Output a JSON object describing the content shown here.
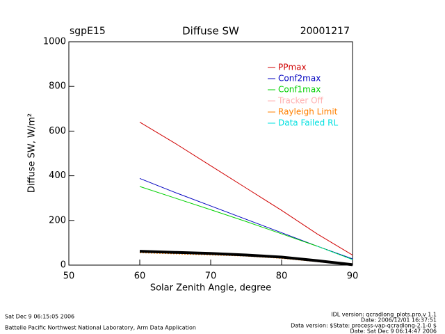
{
  "chart_data": {
    "type": "line",
    "site": "sgpE15",
    "title": "Diffuse SW",
    "date": "20001217",
    "x_label": "Solar Zenith Angle, degree",
    "y_label": "Diffuse SW, W/m²",
    "x": [
      60,
      65,
      70,
      75,
      80,
      85,
      90
    ],
    "xlim": [
      50,
      90
    ],
    "xticks": [
      50,
      60,
      70,
      80,
      90
    ],
    "ylim": [
      0,
      1000
    ],
    "yticks": [
      0,
      200,
      400,
      600,
      800,
      1000
    ],
    "series": [
      {
        "name": "PPmax",
        "color": "#d00000",
        "values": [
          640,
          545,
          445,
          345,
          245,
          140,
          45
        ]
      },
      {
        "name": "Conf2max",
        "color": "#0000c0",
        "values": [
          388,
          325,
          265,
          205,
          145,
          85,
          28
        ]
      },
      {
        "name": "Conf1max",
        "color": "#00d000",
        "values": [
          352,
          300,
          248,
          195,
          140,
          85,
          25
        ]
      },
      {
        "name": "Tracker Off",
        "color": "#ffb0b0",
        "values": [
          null,
          null,
          null,
          null,
          null,
          null,
          null
        ]
      },
      {
        "name": "Rayleigh Limit",
        "color": "#ff8000",
        "values": [
          55,
          50,
          45,
          40,
          30,
          15,
          0
        ]
      },
      {
        "name": "Data Failed RL",
        "color": "#00e0e0",
        "values": [
          null,
          null,
          null,
          null,
          null,
          85,
          25
        ]
      },
      {
        "color": "#000000",
        "values": [
          62,
          57,
          52,
          45,
          36,
          20,
          2
        ]
      }
    ],
    "footer_left": [
      "Sat Dec  9 06:15:05 2006",
      "Battelle Pacific Northwest National Laboratory, Arm Data Application"
    ],
    "footer_right": [
      "IDL version: qcradlong_plots.pro,v 1.1",
      "Date: 2006/12/01 16:37:51",
      "Data version: $State: process-vap-qcradlong-2.1-0 $",
      "Date: Sat Dec  9 06:14:47 2006"
    ]
  }
}
